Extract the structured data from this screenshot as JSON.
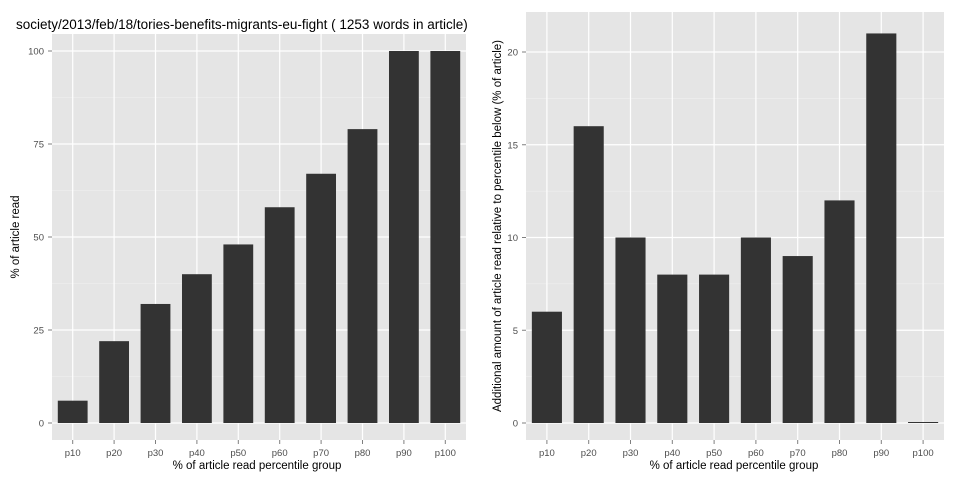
{
  "chart_data": [
    {
      "type": "bar",
      "title": "society/2013/feb/18/tories-benefits-migrants-eu-fight ( 1253 words in article)",
      "xlabel": "% of article read percentile group",
      "ylabel": "% of article read",
      "categories": [
        "p10",
        "p20",
        "p30",
        "p40",
        "p50",
        "p60",
        "p70",
        "p80",
        "p90",
        "p100"
      ],
      "values": [
        6,
        22,
        32,
        40,
        48,
        58,
        67,
        79,
        100,
        100
      ],
      "ylim": [
        0,
        100
      ],
      "yticks": [
        0,
        25,
        50,
        75,
        100
      ],
      "grid": true,
      "bar_color": "#333333",
      "panel_background": "#e5e5e5"
    },
    {
      "type": "bar",
      "title": "",
      "xlabel": "% of article read percentile group",
      "ylabel": "Additional amount of article read relative to percentile below (% of article)",
      "categories": [
        "p10",
        "p20",
        "p30",
        "p40",
        "p50",
        "p60",
        "p70",
        "p80",
        "p90",
        "p100"
      ],
      "values": [
        6,
        16,
        10,
        8,
        8,
        10,
        9,
        12,
        21,
        0
      ],
      "ylim": [
        0,
        22
      ],
      "yticks": [
        0,
        5,
        10,
        15,
        20
      ],
      "grid": true,
      "bar_color": "#333333",
      "panel_background": "#e5e5e5"
    }
  ]
}
